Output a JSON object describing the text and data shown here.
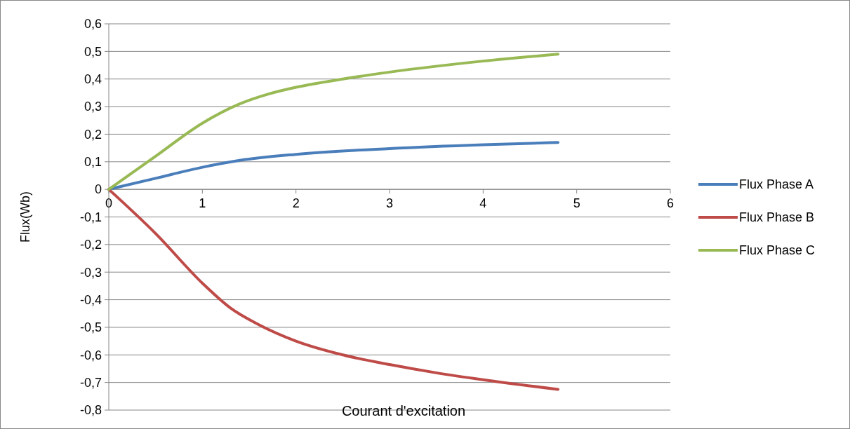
{
  "chart_data": {
    "type": "line",
    "xlabel": "Courant d'excitation",
    "ylabel": "Flux(Wb)",
    "xlim": [
      0,
      6
    ],
    "xticks": [
      0,
      1,
      2,
      3,
      4,
      5,
      6
    ],
    "ylim": [
      -0.8,
      0.6
    ],
    "yticks": [
      {
        "value": 0.6,
        "label": "0,6"
      },
      {
        "value": 0.5,
        "label": "0,5"
      },
      {
        "value": 0.4,
        "label": "0,4"
      },
      {
        "value": 0.3,
        "label": "0,3"
      },
      {
        "value": 0.2,
        "label": "0,2"
      },
      {
        "value": 0.1,
        "label": "0,1"
      },
      0,
      {
        "value": -0.1,
        "label": "-0,1"
      },
      {
        "value": -0.2,
        "label": "-0,2"
      },
      {
        "value": -0.3,
        "label": "-0,3"
      },
      {
        "value": -0.4,
        "label": "-0,4"
      },
      {
        "value": -0.5,
        "label": "-0,5"
      },
      {
        "value": -0.6,
        "label": "-0,6"
      },
      {
        "value": -0.7,
        "label": "-0,7"
      },
      {
        "value": -0.8,
        "label": "-0,8"
      }
    ],
    "grid": "y",
    "legend": "right",
    "marker": "none",
    "line_style": "solid",
    "series": [
      {
        "name": "Flux Phase A",
        "color": "#4a7ebb",
        "x": [
          0,
          0.5,
          1,
          1.4,
          2,
          3,
          4,
          4.8
        ],
        "values": [
          0,
          0.04,
          0.08,
          0.105,
          0.127,
          0.148,
          0.162,
          0.17
        ]
      },
      {
        "name": "Flux Phase B",
        "color": "#be4b48",
        "x": [
          0,
          0.5,
          1,
          1.3,
          1.6,
          2,
          2.5,
          3,
          3.5,
          4,
          4.8
        ],
        "values": [
          0,
          -0.16,
          -0.34,
          -0.43,
          -0.49,
          -0.55,
          -0.6,
          -0.635,
          -0.665,
          -0.69,
          -0.725
        ]
      },
      {
        "name": "Flux Phase C",
        "color": "#98b954",
        "x": [
          0,
          0.5,
          1,
          1.4,
          1.7,
          2,
          2.5,
          3,
          4,
          4.8
        ],
        "values": [
          0,
          0.12,
          0.24,
          0.31,
          0.345,
          0.37,
          0.4,
          0.425,
          0.465,
          0.49
        ]
      }
    ]
  }
}
